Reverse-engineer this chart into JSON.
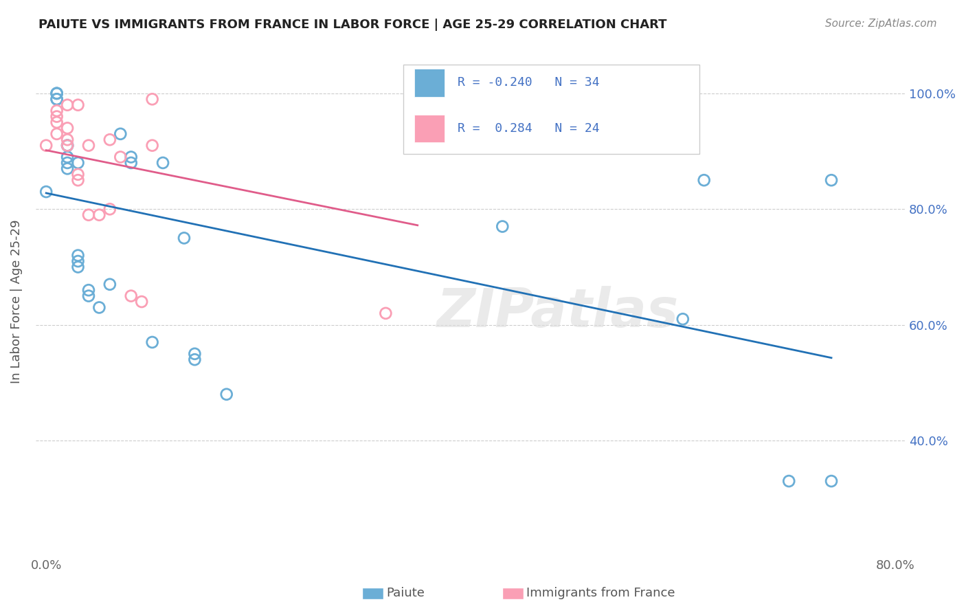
{
  "title": "PAIUTE VS IMMIGRANTS FROM FRANCE IN LABOR FORCE | AGE 25-29 CORRELATION CHART",
  "source": "Source: ZipAtlas.com",
  "ylabel": "In Labor Force | Age 25-29",
  "blue_color": "#6baed6",
  "pink_color": "#fa9fb5",
  "blue_line_color": "#2171b5",
  "pink_line_color": "#e05c8a",
  "watermark": "ZIPatlas",
  "paiute_x": [
    0.0,
    0.01,
    0.01,
    0.01,
    0.01,
    0.01,
    0.02,
    0.02,
    0.02,
    0.02,
    0.02,
    0.03,
    0.03,
    0.03,
    0.03,
    0.04,
    0.04,
    0.05,
    0.06,
    0.07,
    0.08,
    0.08,
    0.1,
    0.11,
    0.13,
    0.14,
    0.14,
    0.17,
    0.43,
    0.6,
    0.62,
    0.7,
    0.74,
    0.74
  ],
  "paiute_y": [
    0.83,
    0.99,
    0.99,
    1.0,
    1.0,
    1.0,
    0.87,
    0.88,
    0.89,
    0.91,
    0.91,
    0.7,
    0.71,
    0.72,
    0.88,
    0.65,
    0.66,
    0.63,
    0.67,
    0.93,
    0.88,
    0.89,
    0.57,
    0.88,
    0.75,
    0.54,
    0.55,
    0.48,
    0.77,
    0.61,
    0.85,
    0.33,
    0.33,
    0.85
  ],
  "france_x": [
    0.0,
    0.01,
    0.01,
    0.01,
    0.01,
    0.02,
    0.02,
    0.02,
    0.02,
    0.03,
    0.03,
    0.03,
    0.04,
    0.04,
    0.05,
    0.06,
    0.06,
    0.07,
    0.08,
    0.09,
    0.1,
    0.1,
    0.32,
    0.35
  ],
  "france_y": [
    0.91,
    0.93,
    0.95,
    0.96,
    0.97,
    0.91,
    0.92,
    0.94,
    0.98,
    0.85,
    0.86,
    0.98,
    0.79,
    0.91,
    0.79,
    0.8,
    0.92,
    0.89,
    0.65,
    0.64,
    0.91,
    0.99,
    0.62,
    0.99
  ],
  "x_tick_positions": [
    0.0,
    0.1,
    0.2,
    0.3,
    0.4,
    0.5,
    0.6,
    0.7,
    0.8
  ],
  "x_tick_labels": [
    "0.0%",
    "",
    "",
    "",
    "",
    "",
    "",
    "",
    "80.0%"
  ],
  "y_tick_positions": [
    0.4,
    0.6,
    0.8,
    1.0
  ],
  "y_tick_labels": [
    "40.0%",
    "60.0%",
    "80.0%",
    "100.0%"
  ],
  "legend_entries": [
    {
      "r": "R = -0.240",
      "n": "N = 34"
    },
    {
      "r": "R =  0.284",
      "n": "N = 24"
    }
  ]
}
